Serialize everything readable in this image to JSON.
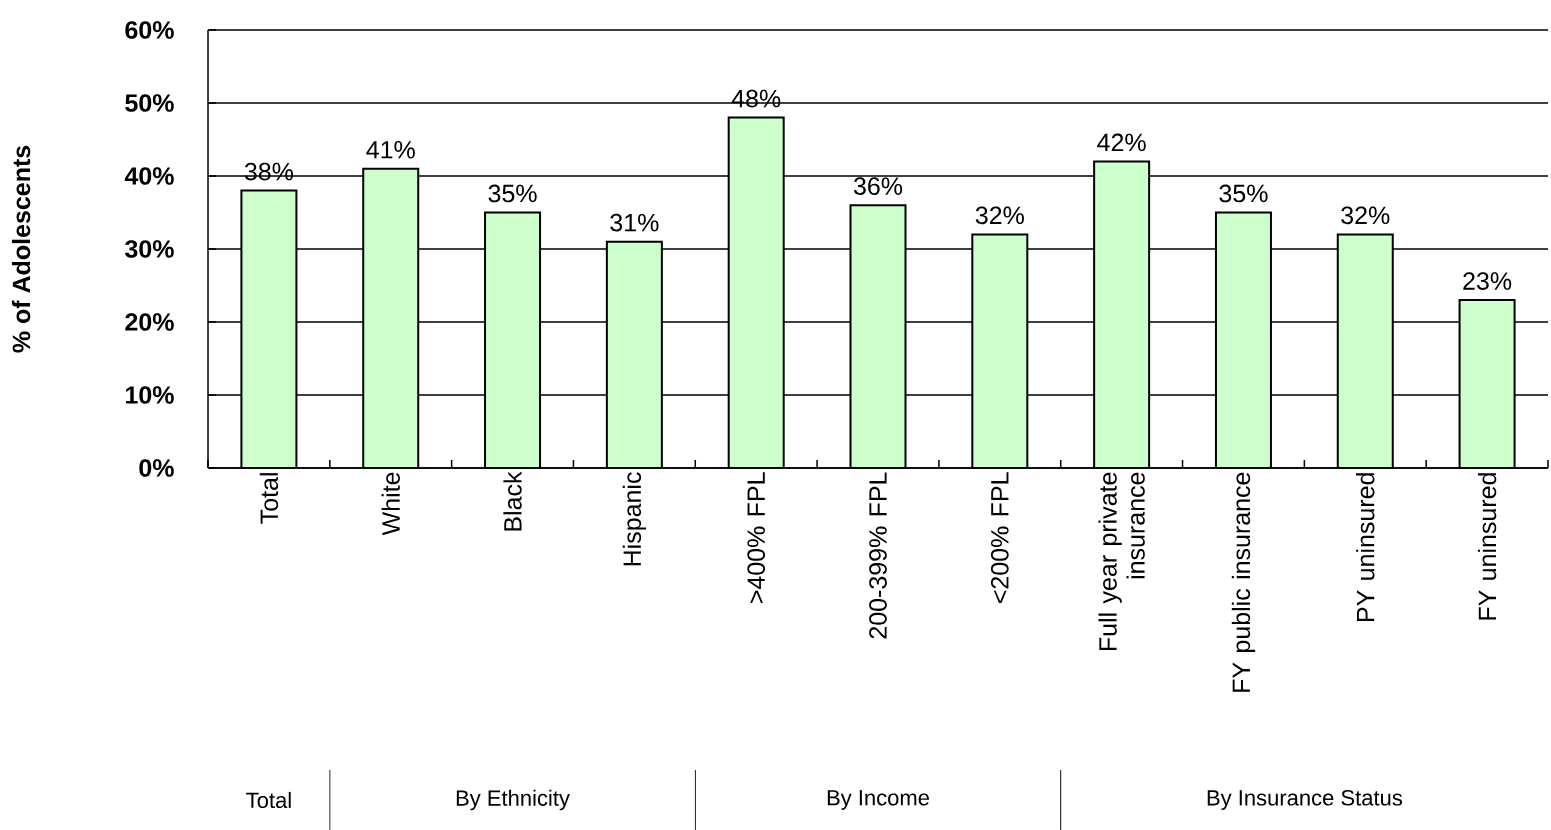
{
  "chart_data": {
    "type": "bar",
    "ylabel": "% of Adolescents",
    "categories": [
      "Total",
      "White",
      "Black",
      "Hispanic",
      ">400% FPL",
      "200-399% FPL",
      "<200% FPL",
      "Full year private insurance",
      "FY public insurance",
      "PY uninsured",
      "FY uninsured"
    ],
    "values": [
      38,
      41,
      35,
      31,
      48,
      36,
      32,
      42,
      35,
      32,
      23
    ],
    "value_labels": [
      "38%",
      "41%",
      "35%",
      "31%",
      "48%",
      "36%",
      "32%",
      "42%",
      "35%",
      "32%",
      "23%"
    ],
    "color": "#ccffcc",
    "ylim": [
      0,
      60
    ],
    "yticks": [
      {
        "value": 0,
        "label": "0%"
      },
      {
        "value": 10,
        "label": "10%"
      },
      {
        "value": 20,
        "label": "20%"
      },
      {
        "value": 30,
        "label": "30%"
      },
      {
        "value": 40,
        "label": "40%"
      },
      {
        "value": 50,
        "label": "50%"
      },
      {
        "value": 60,
        "label": "60%"
      }
    ],
    "grid": "y",
    "annotations": [
      "Total",
      "By Ethnicity",
      "By Income",
      "By Insurance Status"
    ]
  }
}
